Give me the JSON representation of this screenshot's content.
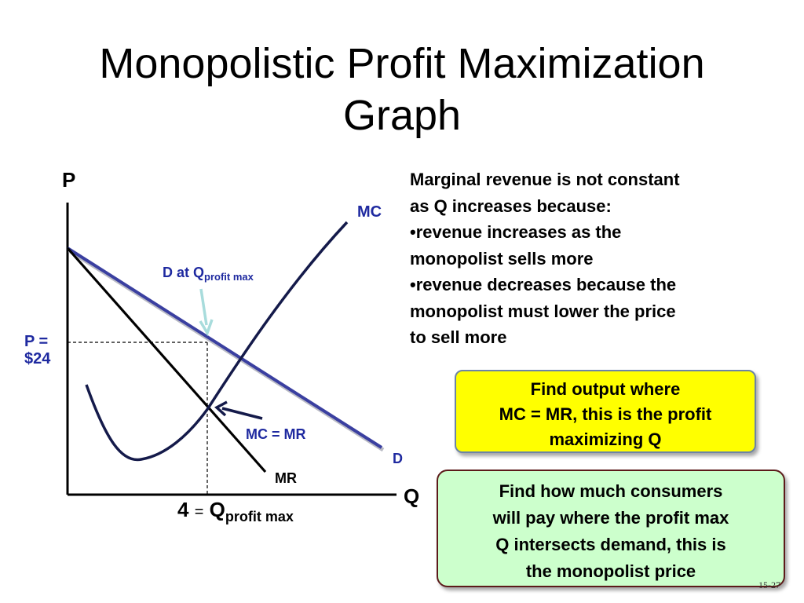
{
  "title": {
    "line1": "Monopolistic Profit Maximization",
    "line2": "Graph"
  },
  "graph": {
    "axis_y_label": "P",
    "axis_x_label": "Q",
    "mc_label": "MC",
    "demand_note_prefix": "D at Q",
    "demand_note_sub": "profit max",
    "price_label_line1": "P =",
    "price_label_line2": "$24",
    "mc_mr_label": "MC = MR",
    "demand_label": "D",
    "mr_label": "MR",
    "q_value": "4",
    "q_equals": "=",
    "q_symbol": "Q",
    "q_sub": "profit max",
    "colors": {
      "demand": "#3a3fa0",
      "mc": "#141a4a",
      "mr": "#000000",
      "accent": "#1f2aa0",
      "pointer": "#a8dcdc"
    }
  },
  "explanation": {
    "lines": [
      "Marginal revenue is not constant",
      "as Q increases because:",
      "•revenue increases as the",
      "monopolist sells more",
      "•revenue decreases because the",
      "monopolist must lower the price",
      "to sell more"
    ]
  },
  "box_output": {
    "lines": [
      "Find output where",
      "MC = MR, this is the profit",
      "maximizing Q"
    ]
  },
  "box_price": {
    "lines": [
      "Find how much consumers",
      "will pay where the profit max",
      "Q intersects demand, this is",
      "the monopolist price"
    ]
  },
  "slide_number": "15-27"
}
